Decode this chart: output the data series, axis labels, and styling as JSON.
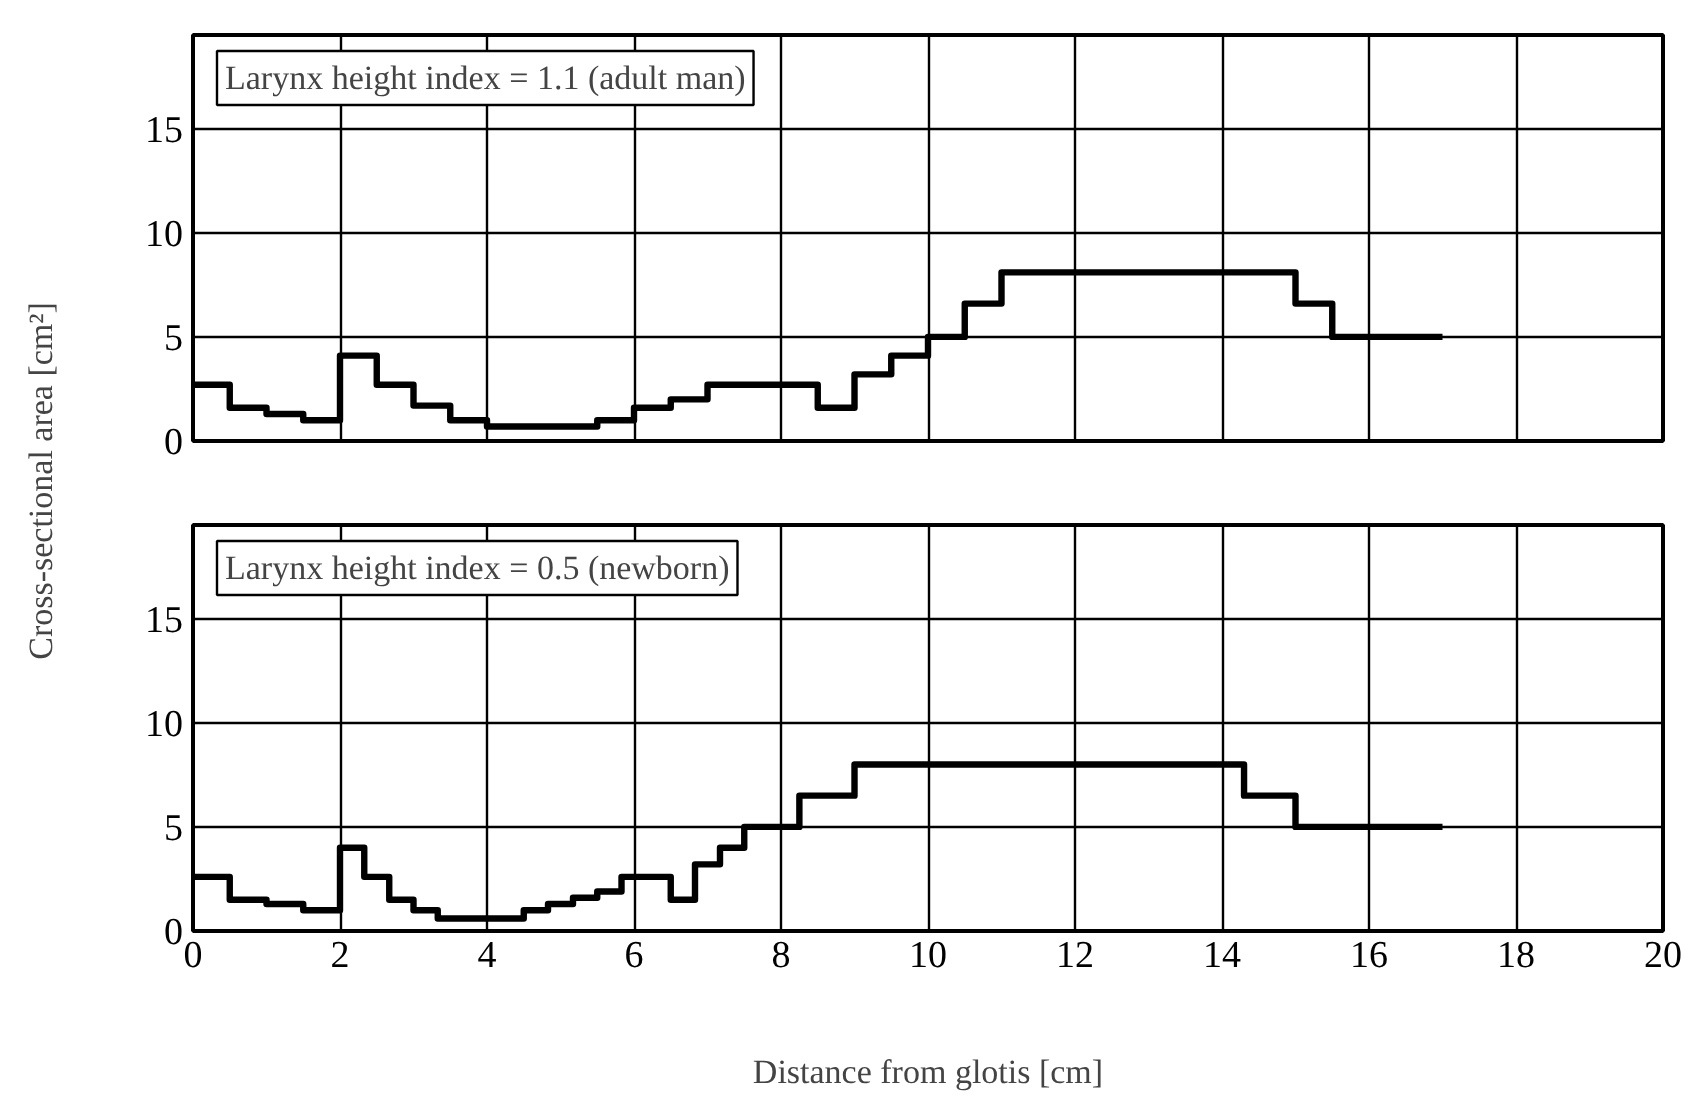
{
  "chart_data": [
    {
      "type": "step",
      "annotations": [
        "Larynx height index = 1.1 (adult man)"
      ],
      "ylabel": "Cross-sectional area [cm²]",
      "series": [
        {
          "color": "#000000",
          "x": [
            0,
            0.5,
            1,
            1.5,
            2,
            2.5,
            3,
            3.5,
            4,
            5.5,
            6,
            6.5,
            7,
            7.5,
            8.5,
            9,
            9.5,
            10,
            10.5,
            11,
            15,
            15.5,
            17
          ],
          "values": [
            2.7,
            1.6,
            1.3,
            1.0,
            4.1,
            2.7,
            1.7,
            1.0,
            0.7,
            1.0,
            1.6,
            2.0,
            2.7,
            2.7,
            1.6,
            3.2,
            4.1,
            5.0,
            6.6,
            8.1,
            6.6,
            5.0,
            5.0
          ]
        }
      ],
      "xlim": [
        0,
        20
      ],
      "ylim": [
        0,
        19.5
      ],
      "xticks": [
        0,
        2,
        4,
        6,
        8,
        10,
        12,
        14,
        16,
        18,
        20
      ],
      "yticks": [
        0,
        5,
        10,
        15
      ],
      "grid": true,
      "tick_labels": "y",
      "line_style": "solid"
    },
    {
      "type": "step",
      "annotations": [
        "Larynx height index = 0.5 (newborn)"
      ],
      "xlabel": "Distance from glotis [cm]",
      "series": [
        {
          "color": "#000000",
          "x": [
            0,
            0.5,
            1,
            1.5,
            2,
            2.33,
            2.67,
            3,
            3.33,
            4.5,
            4.83,
            5.17,
            5.5,
            5.83,
            6.5,
            6.83,
            7.17,
            7.5,
            8.25,
            9,
            14.3,
            15,
            17
          ],
          "values": [
            2.6,
            1.5,
            1.3,
            1.0,
            4.0,
            2.6,
            1.5,
            1.0,
            0.6,
            1.0,
            1.3,
            1.6,
            1.9,
            2.6,
            1.5,
            3.2,
            4.0,
            5.0,
            6.5,
            8.0,
            6.5,
            5.0,
            5.0
          ]
        }
      ],
      "xlim": [
        0,
        20
      ],
      "ylim": [
        0,
        19.5
      ],
      "xticks": [
        0,
        2,
        4,
        6,
        8,
        10,
        12,
        14,
        16,
        18,
        20
      ],
      "yticks": [
        0,
        5,
        10,
        15
      ],
      "grid": true,
      "line_style": "solid"
    }
  ]
}
